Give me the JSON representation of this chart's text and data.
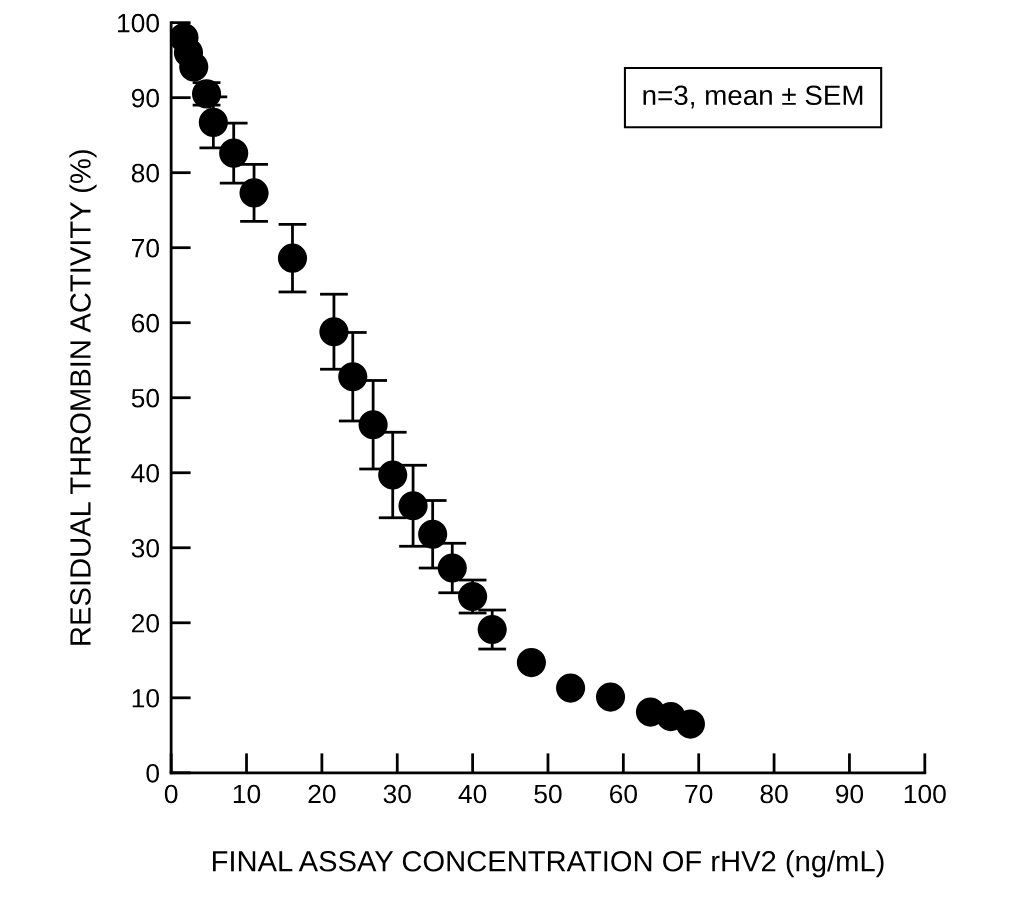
{
  "chart_data": {
    "type": "scatter",
    "xlabel": "FINAL ASSAY CONCENTRATION OF rHV2 (ng/mL)",
    "ylabel": "RESIDUAL THROMBIN ACTIVITY (%)",
    "annotations": [
      "n=3, mean ± SEM"
    ],
    "x": [
      1.7,
      2.3,
      3.0,
      4.7,
      5.6,
      8.3,
      11.0,
      16.1,
      21.6,
      24.1,
      26.8,
      29.4,
      32.1,
      34.7,
      37.3,
      40.0,
      42.6,
      47.8,
      53.0,
      58.3,
      63.6,
      66.3,
      68.9
    ],
    "series": [
      {
        "color": "#000000",
        "values": [
          98.0,
          96.0,
          94.1,
          90.5,
          86.7,
          82.6,
          77.3,
          68.6,
          58.8,
          52.8,
          46.4,
          39.7,
          35.6,
          31.8,
          27.3,
          23.5,
          19.1,
          14.7,
          11.3,
          10.1,
          8.1,
          7.5,
          6.5
        ],
        "errors": [
          null,
          null,
          null,
          1.5,
          3.4,
          4.0,
          3.8,
          4.5,
          5.0,
          5.9,
          5.9,
          5.7,
          5.4,
          4.5,
          3.3,
          2.2,
          2.6,
          null,
          null,
          null,
          null,
          null,
          null
        ]
      }
    ],
    "marker": "circle",
    "xlim": [
      0,
      100
    ],
    "xticks": [
      0,
      10,
      20,
      30,
      40,
      50,
      60,
      70,
      80,
      90,
      100
    ],
    "ylim": [
      0,
      100
    ],
    "yticks": [
      0,
      10,
      20,
      30,
      40,
      50,
      60,
      70,
      80,
      90,
      100
    ],
    "grid": false,
    "legend": false
  }
}
